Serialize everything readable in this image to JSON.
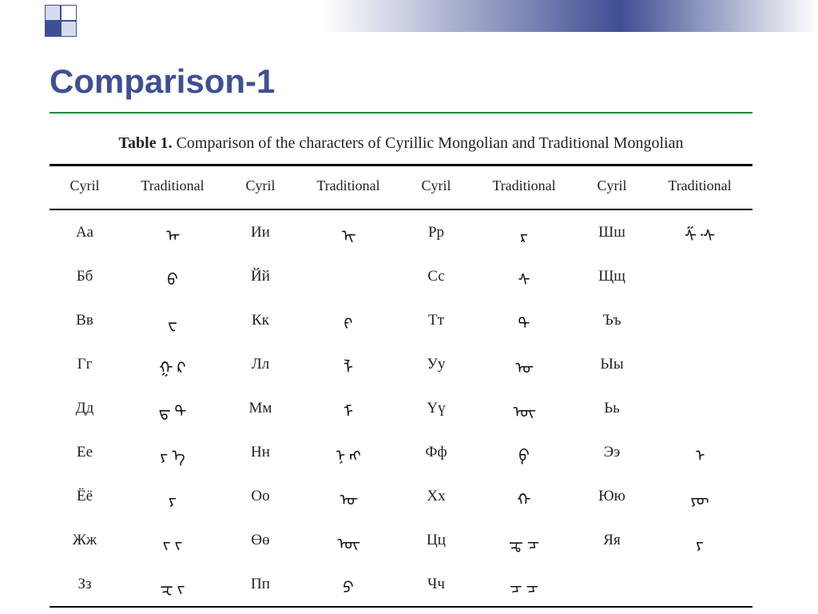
{
  "colors": {
    "title": "#3f4f93",
    "rule": "#1f8a3a",
    "gradient_mid": "#3f4f93",
    "table_border": "#000000",
    "text": "#222222",
    "background": "#ffffff"
  },
  "typography": {
    "title_fontsize_pt": 32,
    "title_weight": "bold",
    "caption_fontsize_pt": 15,
    "body_fontsize_pt": 14,
    "body_family": "Times New Roman"
  },
  "title": "Comparison-1",
  "caption_label": "Table 1.",
  "caption_text": " Comparison of the characters of Cyrillic Mongolian and Traditional Mongolian",
  "headers": {
    "cyril": "Cyril",
    "traditional": "Traditional"
  },
  "table": {
    "type": "table",
    "column_pairs": 4,
    "rows": [
      [
        {
          "cyril": "Аа",
          "trad": "ᠠ‍"
        },
        {
          "cyril": "Ии",
          "trad": "ᠢ‍"
        },
        {
          "cyril": "Рр",
          "trad": "ᠷ"
        },
        {
          "cyril": "Шш",
          "trad": "ᠱ᠂ᠰ"
        }
      ],
      [
        {
          "cyril": "Бб",
          "trad": "ᠪ"
        },
        {
          "cyril": "Йй",
          "trad": ""
        },
        {
          "cyril": "Сс",
          "trad": "ᠰ"
        },
        {
          "cyril": "Щщ",
          "trad": ""
        }
      ],
      [
        {
          "cyril": "Вв",
          "trad": "ᠸ"
        },
        {
          "cyril": "Кк",
          "trad": "ᠻ"
        },
        {
          "cyril": "Тт",
          "trad": "ᠲ"
        },
        {
          "cyril": "Ъъ",
          "trad": ""
        }
      ],
      [
        {
          "cyril": "Гг",
          "trad": "ᠭ ᠺ"
        },
        {
          "cyril": "Лл",
          "trad": "ᠯ"
        },
        {
          "cyril": "Уу",
          "trad": "ᠤ‍"
        },
        {
          "cyril": "Ыы",
          "trad": ""
        }
      ],
      [
        {
          "cyril": "Дд",
          "trad": "ᠳ ᠲ"
        },
        {
          "cyril": "Мм",
          "trad": "ᠮ"
        },
        {
          "cyril": "Үү",
          "trad": "ᠦ‍"
        },
        {
          "cyril": "Ьь",
          "trad": ""
        }
      ],
      [
        {
          "cyril": "Ее",
          "trad": "ᠶ ᠡ"
        },
        {
          "cyril": "Нн",
          "trad": "ᠨ ᠩ"
        },
        {
          "cyril": "Фф",
          "trad": "ᠹ"
        },
        {
          "cyril": "Ээ",
          "trad": "ᠡ‍"
        }
      ],
      [
        {
          "cyril": "Ёё",
          "trad": "ᠶ"
        },
        {
          "cyril": "Оо",
          "trad": "ᠣ‍"
        },
        {
          "cyril": "Хх",
          "trad": "ᠬ"
        },
        {
          "cyril": "Юю",
          "trad": "ᠶᠦ"
        }
      ],
      [
        {
          "cyril": "Жж",
          "trad": "ᠵ ᠵ"
        },
        {
          "cyril": "Өө",
          "trad": "ᠥ‍"
        },
        {
          "cyril": "Цц",
          "trad": "ᠼ ᠴ"
        },
        {
          "cyril": "Яя",
          "trad": "ᠶ"
        }
      ],
      [
        {
          "cyril": "Зз",
          "trad": "ᠽ ᠵ"
        },
        {
          "cyril": "Пп",
          "trad": "ᠫ"
        },
        {
          "cyril": "Чч",
          "trad": "ᠴ ᠴ"
        },
        {
          "cyril": "",
          "trad": ""
        }
      ]
    ]
  }
}
